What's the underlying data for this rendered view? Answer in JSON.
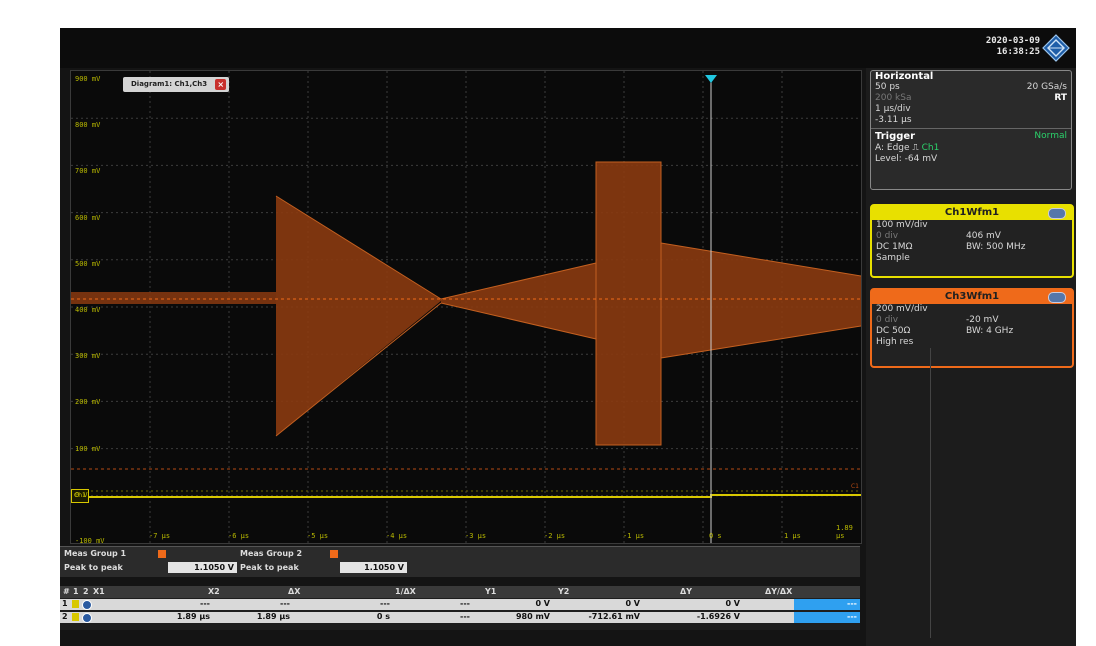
{
  "status": {
    "date": "2020-03-09",
    "time": "16:38:25",
    "logo_icon": "rohde-schwarz-diamond-icon"
  },
  "diagram": {
    "tab_label": "Diagram1: Ch1,Ch3",
    "close_symbol": "×",
    "y_labels": [
      "900 mV",
      "800 mV",
      "700 mV",
      "600 mV",
      "500 mV",
      "400 mV",
      "300 mV",
      "200 mV",
      "100 mV",
      "0 V",
      "-100 mV"
    ],
    "x_labels": [
      "-7 µs",
      "-6 µs",
      "-5 µs",
      "-4 µs",
      "-3 µs",
      "-2 µs",
      "-1 µs",
      "0 s",
      "1 µs",
      "1.89 µs"
    ],
    "level_marker_left": "Ch1",
    "level_marker_right": "C1"
  },
  "panel": {
    "horizontal": {
      "title": "Horizontal",
      "resolution": "50 ps",
      "sample_rate": "20 GSa/s",
      "record_length": "200 kSa",
      "mode": "RT",
      "time_scale": "1 µs/div",
      "position": "-3.11 µs"
    },
    "trigger": {
      "title": "Trigger",
      "mode": "Normal",
      "type": "A: Edge",
      "edge_icon": "rising-edge-icon",
      "source": "Ch1",
      "level": "Level: -64 mV"
    },
    "ch1": {
      "title": "Ch1Wfm1",
      "scale": "100 mV/div",
      "offset_div": "0 div",
      "offset": "406 mV",
      "coupling": "DC 1MΩ",
      "bandwidth": "BW: 500 MHz",
      "acq": "Sample"
    },
    "ch3": {
      "title": "Ch3Wfm1",
      "scale": "200 mV/div",
      "offset_div": "0 div",
      "offset": "-20 mV",
      "coupling": "DC 50Ω",
      "bandwidth": "BW: 4 GHz",
      "acq": "High res"
    }
  },
  "measurements": {
    "group1_label": "Meas Group 1",
    "group1_name": "Peak to peak",
    "group1_value": "1.1050 V",
    "group2_label": "Meas Group 2",
    "group2_name": "Peak to peak",
    "group2_value": "1.1050 V"
  },
  "cursor_table": {
    "headers": [
      "#",
      "1",
      "2",
      "X1",
      "X2",
      "ΔX",
      "1/ΔX",
      "Y1",
      "Y2",
      "ΔY",
      "ΔY/ΔX"
    ],
    "rows": [
      {
        "num": "1",
        "x1": "---",
        "x2": "---",
        "dx": "---",
        "inv_dx": "---",
        "y1": "0 V",
        "y2": "0 V",
        "dy": "0 V",
        "dydx": "---"
      },
      {
        "num": "2",
        "x1": "1.89 µs",
        "x2": "1.89 µs",
        "dx": "0 s",
        "inv_dx": "---",
        "y1": "980 mV",
        "y2": "-712.61 mV",
        "dy": "-1.6926 V",
        "dydx": "---"
      }
    ]
  },
  "colors": {
    "ch1": "#e8e000",
    "ch3": "#ef6a1a",
    "cursor": "#21c7e0",
    "grid": "#3c3c3c"
  }
}
